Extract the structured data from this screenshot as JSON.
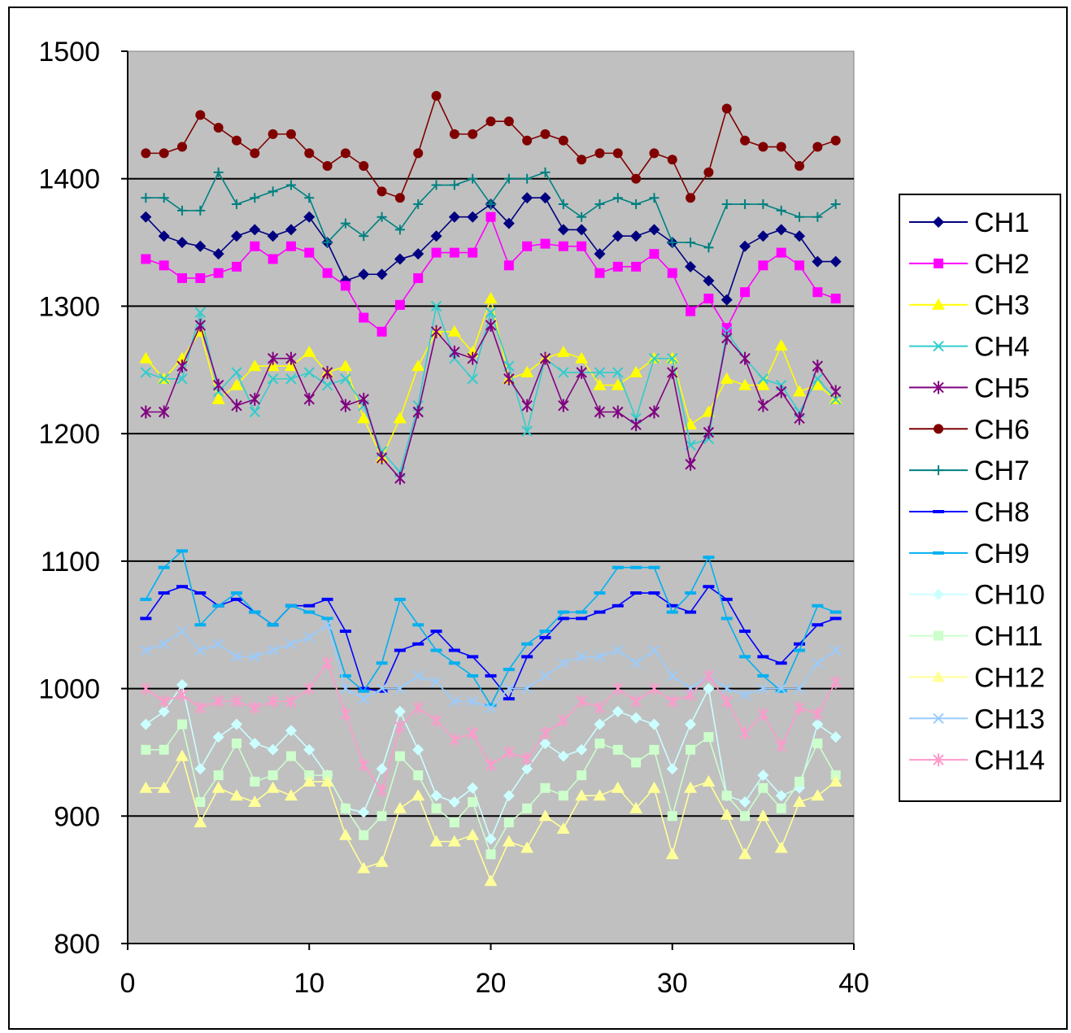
{
  "chart_data": {
    "type": "line",
    "title": "",
    "xlabel": "",
    "ylabel": "",
    "xlim": [
      0,
      40
    ],
    "ylim": [
      800,
      1500
    ],
    "xticks": [
      0,
      10,
      20,
      30,
      40
    ],
    "yticks": [
      800,
      900,
      1000,
      1100,
      1200,
      1300,
      1400,
      1500
    ],
    "grid": "horizontal",
    "plot_background": "#c0c0c0",
    "legend_position": "right",
    "x": [
      1,
      2,
      3,
      4,
      5,
      6,
      7,
      8,
      9,
      10,
      11,
      12,
      13,
      14,
      15,
      16,
      17,
      18,
      19,
      20,
      21,
      22,
      23,
      24,
      25,
      26,
      27,
      28,
      29,
      30,
      31,
      32,
      33,
      34,
      35,
      36,
      37,
      38,
      39
    ],
    "series": [
      {
        "name": "CH1",
        "color": "#000080",
        "marker": "diamond",
        "values": [
          1370,
          1355,
          1350,
          1347,
          1341,
          1355,
          1360,
          1355,
          1360,
          1370,
          1350,
          1320,
          1325,
          1325,
          1337,
          1341,
          1355,
          1370,
          1370,
          1380,
          1365,
          1385,
          1385,
          1360,
          1360,
          1341,
          1355,
          1355,
          1360,
          1350,
          1331,
          1320,
          1305,
          1347,
          1355,
          1360,
          1355,
          1335,
          1335
        ]
      },
      {
        "name": "CH2",
        "color": "#ff00ff",
        "marker": "square",
        "values": [
          1337,
          1332,
          1322,
          1322,
          1326,
          1331,
          1347,
          1337,
          1347,
          1342,
          1326,
          1316,
          1291,
          1280,
          1301,
          1322,
          1342,
          1342,
          1342,
          1370,
          1332,
          1347,
          1349,
          1347,
          1347,
          1326,
          1331,
          1331,
          1341,
          1326,
          1296,
          1306,
          1283,
          1311,
          1332,
          1342,
          1332,
          1311,
          1306
        ]
      },
      {
        "name": "CH3",
        "color": "#ffff00",
        "marker": "triangle",
        "values": [
          1259,
          1243,
          1259,
          1280,
          1227,
          1238,
          1253,
          1253,
          1253,
          1264,
          1248,
          1253,
          1212,
          1181,
          1212,
          1253,
          1280,
          1280,
          1264,
          1306,
          1243,
          1248,
          1259,
          1264,
          1259,
          1238,
          1238,
          1248,
          1259,
          1259,
          1207,
          1217,
          1243,
          1238,
          1238,
          1269,
          1233,
          1238,
          1227
        ]
      },
      {
        "name": "CH4",
        "color": "#33cccc",
        "marker": "x",
        "values": [
          1248,
          1243,
          1243,
          1295,
          1233,
          1248,
          1217,
          1243,
          1243,
          1248,
          1238,
          1243,
          1222,
          1186,
          1170,
          1222,
          1300,
          1259,
          1243,
          1295,
          1253,
          1202,
          1259,
          1248,
          1248,
          1248,
          1248,
          1212,
          1259,
          1259,
          1191,
          1196,
          1280,
          1259,
          1243,
          1238,
          1217,
          1243,
          1227
        ]
      },
      {
        "name": "CH5",
        "color": "#800080",
        "marker": "star",
        "values": [
          1217,
          1217,
          1253,
          1285,
          1238,
          1222,
          1227,
          1259,
          1259,
          1227,
          1248,
          1222,
          1227,
          1181,
          1165,
          1217,
          1280,
          1264,
          1259,
          1285,
          1243,
          1222,
          1259,
          1222,
          1248,
          1217,
          1217,
          1207,
          1217,
          1248,
          1176,
          1201,
          1275,
          1259,
          1222,
          1233,
          1212,
          1253,
          1233
        ]
      },
      {
        "name": "CH6",
        "color": "#800000",
        "marker": "circle",
        "values": [
          1420,
          1420,
          1425,
          1450,
          1440,
          1430,
          1420,
          1435,
          1435,
          1420,
          1410,
          1420,
          1410,
          1390,
          1385,
          1420,
          1465,
          1435,
          1435,
          1445,
          1445,
          1430,
          1435,
          1430,
          1415,
          1420,
          1420,
          1400,
          1420,
          1415,
          1385,
          1405,
          1455,
          1430,
          1425,
          1425,
          1410,
          1425,
          1430
        ]
      },
      {
        "name": "CH7",
        "color": "#008080",
        "marker": "plus",
        "values": [
          1385,
          1385,
          1375,
          1375,
          1405,
          1380,
          1385,
          1390,
          1395,
          1385,
          1350,
          1365,
          1355,
          1370,
          1360,
          1380,
          1395,
          1395,
          1400,
          1380,
          1400,
          1400,
          1405,
          1380,
          1370,
          1380,
          1385,
          1380,
          1385,
          1350,
          1350,
          1346,
          1380,
          1380,
          1380,
          1375,
          1370,
          1370,
          1380
        ]
      },
      {
        "name": "CH8",
        "color": "#0000ff",
        "marker": "dash",
        "values": [
          1055,
          1075,
          1080,
          1075,
          1065,
          1070,
          1060,
          1050,
          1065,
          1065,
          1070,
          1045,
          1000,
          998,
          1030,
          1035,
          1045,
          1030,
          1025,
          1010,
          992,
          1025,
          1040,
          1055,
          1055,
          1060,
          1065,
          1075,
          1075,
          1065,
          1060,
          1080,
          1070,
          1045,
          1025,
          1020,
          1035,
          1050,
          1055
        ]
      },
      {
        "name": "CH9",
        "color": "#00b0f0",
        "marker": "dash",
        "values": [
          1070,
          1095,
          1108,
          1050,
          1065,
          1075,
          1060,
          1050,
          1065,
          1060,
          1055,
          1010,
          998,
          1020,
          1070,
          1050,
          1030,
          1020,
          1010,
          987,
          1015,
          1035,
          1045,
          1060,
          1060,
          1075,
          1095,
          1095,
          1095,
          1060,
          1075,
          1103,
          1055,
          1025,
          1010,
          998,
          1030,
          1065,
          1060
        ]
      },
      {
        "name": "CH10",
        "color": "#ccffff",
        "marker": "diamond",
        "values": [
          972,
          982,
          1003,
          937,
          962,
          972,
          957,
          952,
          967,
          952,
          932,
          906,
          903,
          937,
          982,
          952,
          916,
          911,
          922,
          882,
          916,
          937,
          957,
          947,
          952,
          972,
          982,
          977,
          972,
          937,
          972,
          1000,
          916,
          911,
          932,
          916,
          922,
          972,
          962
        ]
      },
      {
        "name": "CH11",
        "color": "#ccffcc",
        "marker": "square",
        "values": [
          952,
          952,
          972,
          911,
          932,
          957,
          927,
          932,
          947,
          932,
          932,
          906,
          885,
          900,
          947,
          932,
          906,
          895,
          911,
          870,
          895,
          906,
          922,
          916,
          932,
          957,
          952,
          942,
          952,
          900,
          952,
          962,
          916,
          900,
          922,
          906,
          927,
          957,
          932
        ]
      },
      {
        "name": "CH12",
        "color": "#ffff99",
        "marker": "triangle",
        "values": [
          922,
          922,
          947,
          895,
          922,
          916,
          911,
          922,
          916,
          927,
          927,
          885,
          859,
          864,
          906,
          916,
          880,
          880,
          885,
          849,
          880,
          875,
          900,
          890,
          916,
          916,
          922,
          906,
          922,
          870,
          922,
          927,
          901,
          870,
          900,
          875,
          911,
          916,
          927
        ]
      },
      {
        "name": "CH13",
        "color": "#99ccff",
        "marker": "x",
        "values": [
          1030,
          1035,
          1045,
          1030,
          1035,
          1025,
          1025,
          1030,
          1035,
          1040,
          1050,
          1000,
          992,
          1000,
          1000,
          1010,
          1005,
          990,
          990,
          985,
          1000,
          1000,
          1010,
          1020,
          1025,
          1025,
          1030,
          1020,
          1030,
          1010,
          1000,
          1010,
          1000,
          995,
          1000,
          1000,
          1000,
          1020,
          1030
        ]
      },
      {
        "name": "CH14",
        "color": "#ff99cc",
        "marker": "star",
        "values": [
          1000,
          990,
          995,
          985,
          990,
          990,
          985,
          990,
          990,
          1000,
          1020,
          980,
          940,
          920,
          970,
          985,
          975,
          960,
          965,
          940,
          950,
          945,
          965,
          975,
          990,
          985,
          1000,
          990,
          1000,
          990,
          995,
          1010,
          990,
          965,
          980,
          955,
          985,
          980,
          1005
        ]
      }
    ]
  }
}
